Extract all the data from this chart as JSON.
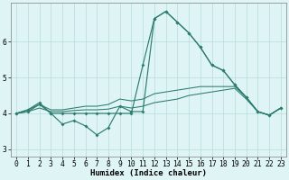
{
  "xlabel": "Humidex (Indice chaleur)",
  "x": [
    0,
    1,
    2,
    3,
    4,
    5,
    6,
    7,
    8,
    9,
    10,
    11,
    12,
    13,
    14,
    15,
    16,
    17,
    18,
    19,
    20,
    21,
    22,
    23
  ],
  "line_wavy": [
    4.0,
    4.05,
    4.25,
    4.0,
    3.7,
    3.8,
    3.65,
    3.4,
    3.6,
    4.2,
    4.05,
    4.05,
    6.65,
    6.85,
    6.55,
    6.25,
    5.85,
    5.35,
    5.2,
    4.8,
    4.45,
    4.05,
    3.95,
    4.15
  ],
  "line_high": [
    4.0,
    4.1,
    4.3,
    4.0,
    4.0,
    4.0,
    4.0,
    4.0,
    4.0,
    4.0,
    4.0,
    5.35,
    6.65,
    6.85,
    6.55,
    6.25,
    5.85,
    5.35,
    5.2,
    4.8,
    4.45,
    4.05,
    3.95,
    4.15
  ],
  "line_mid": [
    4.0,
    4.1,
    4.25,
    4.1,
    4.1,
    4.15,
    4.2,
    4.2,
    4.25,
    4.4,
    4.35,
    4.4,
    4.55,
    4.6,
    4.65,
    4.7,
    4.75,
    4.75,
    4.75,
    4.75,
    4.45,
    4.05,
    3.95,
    4.15
  ],
  "line_low": [
    4.0,
    4.05,
    4.15,
    4.05,
    4.05,
    4.08,
    4.1,
    4.1,
    4.12,
    4.2,
    4.15,
    4.2,
    4.3,
    4.35,
    4.4,
    4.5,
    4.55,
    4.6,
    4.65,
    4.7,
    4.4,
    4.05,
    3.95,
    4.15
  ],
  "line_color": "#2d7d6e",
  "bg_color": "#dff5f5",
  "grid_color": "#b8dada",
  "ylim": [
    2.8,
    7.1
  ],
  "xlim": [
    -0.5,
    23.5
  ],
  "yticks": [
    3,
    4,
    5,
    6
  ],
  "xticks": [
    0,
    1,
    2,
    3,
    4,
    5,
    6,
    7,
    8,
    9,
    10,
    11,
    12,
    13,
    14,
    15,
    16,
    17,
    18,
    19,
    20,
    21,
    22,
    23
  ]
}
